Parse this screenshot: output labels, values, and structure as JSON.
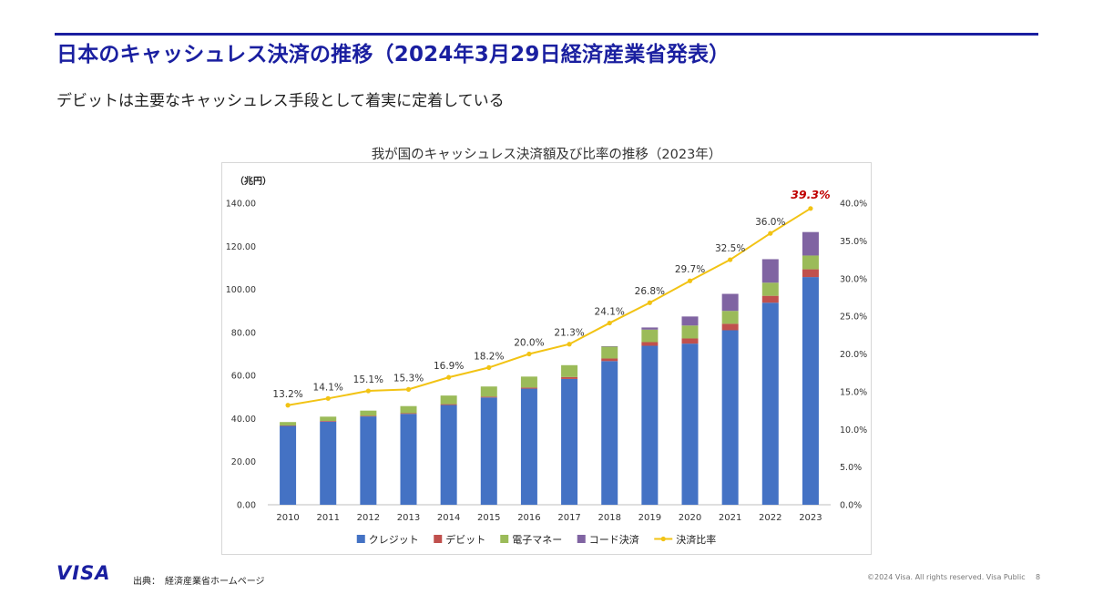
{
  "header": {
    "title": "日本のキャッシュレス決済の推移（2024年3月29日経済産業省発表）",
    "subtitle": "デビットは主要なキャッシュレス手段として着実に定着している"
  },
  "chart_data": {
    "type": "bar",
    "stacked": true,
    "title": "我が国のキャッシュレス決済額及び比率の推移（2023年）",
    "ylabel": "（兆円）",
    "categories": [
      "2010",
      "2011",
      "2012",
      "2013",
      "2014",
      "2015",
      "2016",
      "2017",
      "2018",
      "2019",
      "2020",
      "2021",
      "2022",
      "2023"
    ],
    "ylim": [
      0,
      140
    ],
    "y_ticks": [
      "0.00",
      "20.00",
      "40.00",
      "60.00",
      "80.00",
      "100.00",
      "120.00",
      "140.00"
    ],
    "y2lim": [
      0,
      40
    ],
    "y2_ticks": [
      "0.0%",
      "5.0%",
      "10.0%",
      "15.0%",
      "20.0%",
      "25.0%",
      "30.0%",
      "35.0%",
      "40.0%"
    ],
    "series": [
      {
        "name": "クレジット",
        "color": "#4472c4",
        "values": [
          36.6,
          38.6,
          41.0,
          42.2,
          46.3,
          49.8,
          53.9,
          58.4,
          66.7,
          73.8,
          74.8,
          81.0,
          93.8,
          105.7
        ]
      },
      {
        "name": "デビット",
        "color": "#c0504d",
        "values": [
          0.2,
          0.3,
          0.3,
          0.3,
          0.4,
          0.4,
          0.5,
          0.9,
          1.2,
          1.7,
          2.4,
          3.0,
          3.2,
          3.6
        ]
      },
      {
        "name": "電子マネー",
        "color": "#9bbb59",
        "values": [
          1.6,
          2.0,
          2.4,
          3.3,
          4.0,
          4.7,
          5.1,
          5.5,
          5.5,
          5.8,
          6.0,
          6.0,
          6.1,
          6.4
        ]
      },
      {
        "name": "コード決済",
        "color": "#8064a2",
        "values": [
          0,
          0,
          0,
          0,
          0,
          0,
          0,
          0,
          0.2,
          1.0,
          4.2,
          7.9,
          10.9,
          10.9
        ]
      }
    ],
    "line": {
      "name": "決済比率",
      "color": "#f2c314",
      "axis": "right",
      "values": [
        13.2,
        14.1,
        15.1,
        15.3,
        16.9,
        18.2,
        20.0,
        21.3,
        24.1,
        26.8,
        29.7,
        32.5,
        36.0,
        39.3
      ],
      "labels": [
        "13.2%",
        "14.1%",
        "15.1%",
        "15.3%",
        "16.9%",
        "18.2%",
        "20.0%",
        "21.3%",
        "24.1%",
        "26.8%",
        "29.7%",
        "32.5%",
        "36.0%",
        "39.3%"
      ],
      "highlight_color": "#c00000"
    },
    "legend_position": "bottom",
    "grid": false
  },
  "footer": {
    "logo": "VISA",
    "source": "出典：　経済産業省ホームページ",
    "copyright": "©2024 Visa. All rights reserved. Visa Public",
    "page": "8"
  }
}
